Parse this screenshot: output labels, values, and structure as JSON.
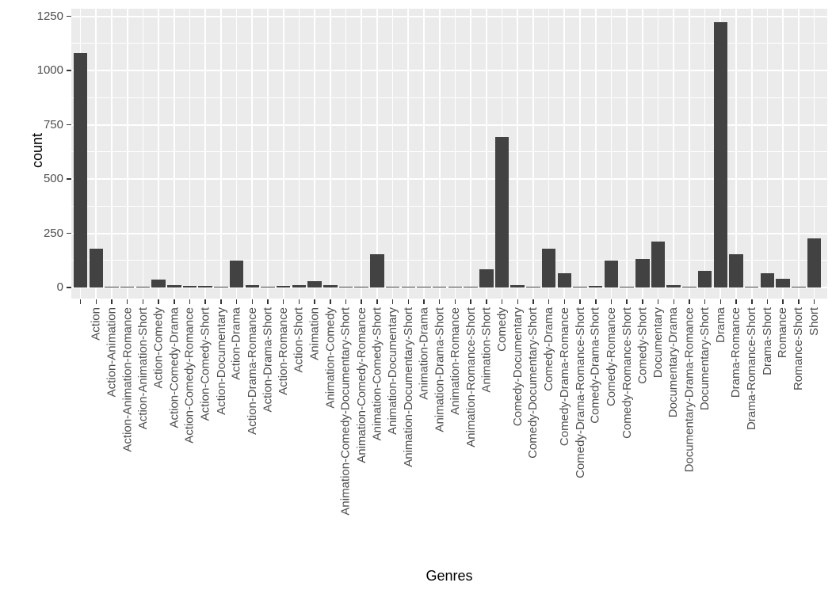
{
  "figure": {
    "panel_bg": "#EBEBEB",
    "grid_color": "#FFFFFF",
    "bar_color": "#424242",
    "axis_text_color": "#4D4D4D",
    "tick_color": "#333333",
    "title_color": "#000000",
    "background": "#FFFFFF"
  },
  "chart_data": {
    "type": "bar",
    "title": "",
    "xlabel": "Genres",
    "ylabel": "count",
    "ylim": [
      0,
      1285
    ],
    "yticks": [
      0,
      250,
      500,
      750,
      1000,
      1250
    ],
    "yticks_minor": [
      125,
      375,
      625,
      875,
      1125
    ],
    "grid": true,
    "legend": false,
    "categories": [
      "",
      "Action",
      "Action-Animation",
      "Action-Animation-Romance",
      "Action-Animation-Short",
      "Action-Comedy",
      "Action-Comedy-Drama",
      "Action-Comedy-Romance",
      "Action-Comedy-Short",
      "Action-Documentary",
      "Action-Drama",
      "Action-Drama-Romance",
      "Action-Drama-Short",
      "Action-Romance",
      "Action-Short",
      "Animation",
      "Animation-Comedy",
      "Animation-Comedy-Documentary-Short",
      "Animation-Comedy-Romance",
      "Animation-Comedy-Short",
      "Animation-Documentary",
      "Animation-Documentary-Short",
      "Animation-Drama",
      "Animation-Drama-Short",
      "Animation-Romance",
      "Animation-Romance-Short",
      "Animation-Short",
      "Comedy",
      "Comedy-Documentary",
      "Comedy-Documentary-Short",
      "Comedy-Drama",
      "Comedy-Drama-Romance",
      "Comedy-Drama-Romance-Short",
      "Comedy-Drama-Short",
      "Comedy-Romance",
      "Comedy-Romance-Short",
      "Comedy-Short",
      "Documentary",
      "Documentary-Drama",
      "Documentary-Drama-Romance",
      "Documentary-Short",
      "Drama",
      "Drama-Romance",
      "Drama-Romance-Short",
      "Drama-Short",
      "Romance",
      "Romance-Short",
      "Short"
    ],
    "values": [
      1080,
      180,
      2,
      2,
      2,
      38,
      10,
      7,
      8,
      2,
      123,
      12,
      2,
      8,
      11,
      28,
      12,
      2,
      2,
      155,
      2,
      2,
      2,
      2,
      2,
      2,
      85,
      695,
      11,
      2,
      180,
      66,
      2,
      8,
      123,
      2,
      130,
      212,
      11,
      2,
      78,
      1222,
      155,
      2,
      65,
      42,
      2,
      228
    ]
  }
}
